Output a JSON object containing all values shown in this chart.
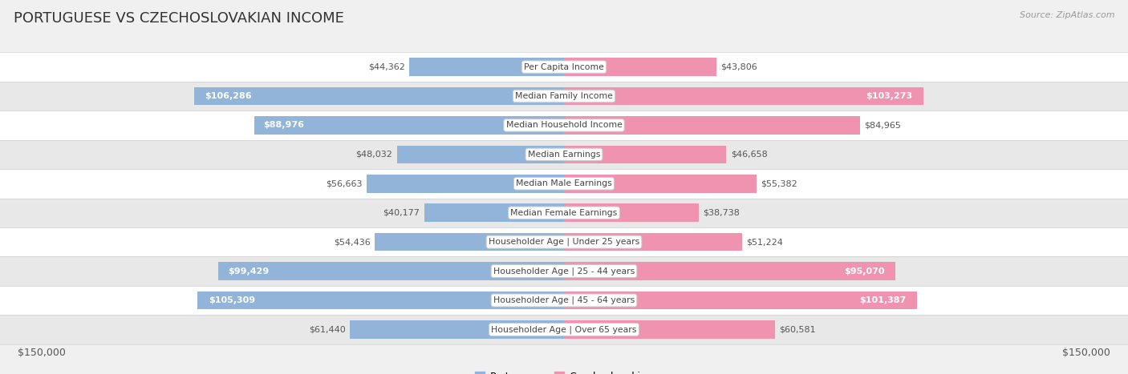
{
  "title": "PORTUGUESE VS CZECHOSLOVAKIAN INCOME",
  "source": "Source: ZipAtlas.com",
  "categories": [
    "Per Capita Income",
    "Median Family Income",
    "Median Household Income",
    "Median Earnings",
    "Median Male Earnings",
    "Median Female Earnings",
    "Householder Age | Under 25 years",
    "Householder Age | 25 - 44 years",
    "Householder Age | 45 - 64 years",
    "Householder Age | Over 65 years"
  ],
  "portuguese_values": [
    44362,
    106286,
    88976,
    48032,
    56663,
    40177,
    54436,
    99429,
    105309,
    61440
  ],
  "czechoslovakian_values": [
    43806,
    103273,
    84965,
    46658,
    55382,
    38738,
    51224,
    95070,
    101387,
    60581
  ],
  "portuguese_labels": [
    "$44,362",
    "$106,286",
    "$88,976",
    "$48,032",
    "$56,663",
    "$40,177",
    "$54,436",
    "$99,429",
    "$105,309",
    "$61,440"
  ],
  "czechoslovakian_labels": [
    "$43,806",
    "$103,273",
    "$84,965",
    "$46,658",
    "$55,382",
    "$38,738",
    "$51,224",
    "$95,070",
    "$101,387",
    "$60,581"
  ],
  "max_value": 150000,
  "portuguese_color": "#92b4d9",
  "czechoslovakian_color": "#f093b0",
  "bar_height": 0.62,
  "background_color": "#f0f0f0",
  "row_color_even": "#ffffff",
  "row_color_odd": "#e8e8e8",
  "title_color": "#333333",
  "label_color_outside": "#555555",
  "label_color_inside": "#ffffff",
  "category_box_color": "#ffffff",
  "category_box_edge": "#cccccc",
  "title_fontsize": 13,
  "bar_label_fontsize": 8,
  "category_fontsize": 7.8,
  "source_fontsize": 8,
  "legend_fontsize": 9,
  "axis_tick_fontsize": 9,
  "inside_label_threshold": 85000
}
